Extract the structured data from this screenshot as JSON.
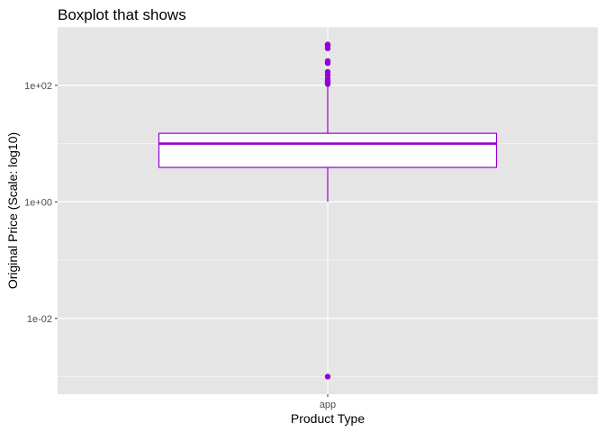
{
  "chart_data": {
    "type": "boxplot",
    "title": "Boxplot that shows",
    "xlabel": "Product Type",
    "ylabel": "Original Price (Scale: log10)",
    "y_scale": "log10",
    "ylim": [
      0.0005,
      1000
    ],
    "y_ticks": [
      {
        "value": 0.01,
        "label": "1e-02"
      },
      {
        "value": 1,
        "label": "1e+00"
      },
      {
        "value": 100,
        "label": "1e+02"
      }
    ],
    "categories": [
      "app"
    ],
    "boxes": [
      {
        "category": "app",
        "lower_whisker": 1,
        "q1": 3.9,
        "median": 9.99,
        "q3": 14.99,
        "upper_whisker": 100,
        "outliers": [
          0.001,
          105,
          110,
          120,
          130,
          150,
          170,
          240,
          260,
          430,
          480,
          500
        ]
      }
    ],
    "colors": {
      "box_stroke": "#9400D3",
      "box_fill": "#ffffff",
      "outlier": "#9400D3",
      "panel_background": "#e5e5e5",
      "grid": "#ffffff"
    },
    "grid": true,
    "legend": "none"
  }
}
